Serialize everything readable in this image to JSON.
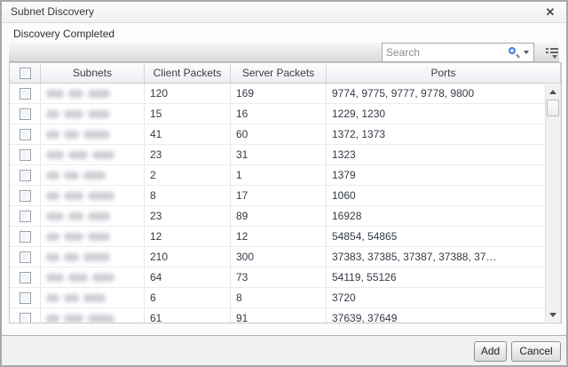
{
  "window": {
    "title": "Subnet Discovery",
    "close_label": "✕"
  },
  "status_text": "Discovery Completed",
  "search": {
    "placeholder": "Search"
  },
  "grid": {
    "columns": {
      "subnets": "Subnets",
      "client_packets": "Client Packets",
      "server_packets": "Server Packets",
      "ports": "Ports"
    },
    "subnets_redacted": true,
    "rows": [
      {
        "client_packets": "120",
        "server_packets": "169",
        "ports": "9774, 9775, 9777, 9778, 9800"
      },
      {
        "client_packets": "15",
        "server_packets": "16",
        "ports": "1229, 1230"
      },
      {
        "client_packets": "41",
        "server_packets": "60",
        "ports": "1372, 1373"
      },
      {
        "client_packets": "23",
        "server_packets": "31",
        "ports": "1323"
      },
      {
        "client_packets": "2",
        "server_packets": "1",
        "ports": "1379"
      },
      {
        "client_packets": "8",
        "server_packets": "17",
        "ports": "1060"
      },
      {
        "client_packets": "23",
        "server_packets": "89",
        "ports": "16928"
      },
      {
        "client_packets": "12",
        "server_packets": "12",
        "ports": "54854, 54865"
      },
      {
        "client_packets": "210",
        "server_packets": "300",
        "ports": "37383, 37385, 37387, 37388, 37…"
      },
      {
        "client_packets": "64",
        "server_packets": "73",
        "ports": "54119, 55126"
      },
      {
        "client_packets": "6",
        "server_packets": "8",
        "ports": "3720"
      },
      {
        "client_packets": "61",
        "server_packets": "91",
        "ports": "37639, 37649"
      }
    ]
  },
  "buttons": {
    "add": "Add",
    "cancel": "Cancel"
  },
  "colors": {
    "accent_blue": "#3f7fd6",
    "header_text": "#3c3c46",
    "cell_text": "#333a45",
    "footer_bg": "#f1f1f0"
  }
}
